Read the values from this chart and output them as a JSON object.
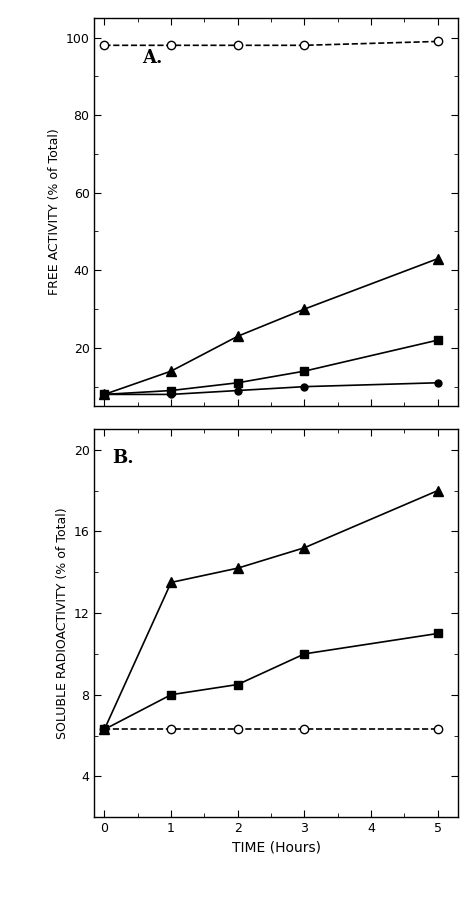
{
  "time_A": [
    0,
    1,
    2,
    3,
    5
  ],
  "A_open_circle": [
    98,
    98,
    98,
    98,
    99
  ],
  "A_filled_triangle": [
    8,
    14,
    23,
    30,
    43
  ],
  "A_filled_square": [
    8,
    9,
    11,
    14,
    22
  ],
  "A_filled_circle": [
    8,
    8,
    9,
    10,
    11
  ],
  "time_B": [
    0,
    1,
    2,
    3,
    5
  ],
  "B_open_circle": [
    6.3,
    6.3,
    6.3,
    6.3,
    6.3
  ],
  "B_filled_triangle": [
    6.3,
    13.5,
    14.2,
    15.2,
    18.0
  ],
  "B_filled_square": [
    6.3,
    8.0,
    8.5,
    10.0,
    11.0
  ],
  "A_ylim": [
    5,
    105
  ],
  "A_yticks": [
    20,
    40,
    60,
    80,
    100
  ],
  "B_ylim": [
    2,
    21
  ],
  "B_yticks": [
    4,
    8,
    12,
    16,
    20
  ],
  "xlabel": "TIME (Hours)",
  "ylabel_A": "FREE ACTIVITY (% of Total)",
  "ylabel_B": "SOLUBLE RADIOACTIVITY (% of Total)",
  "label_A": "A.",
  "label_B": "B.",
  "bg_color": "#ffffff",
  "line_color": "#000000",
  "xticks": [
    0,
    1,
    2,
    3,
    4,
    5
  ]
}
